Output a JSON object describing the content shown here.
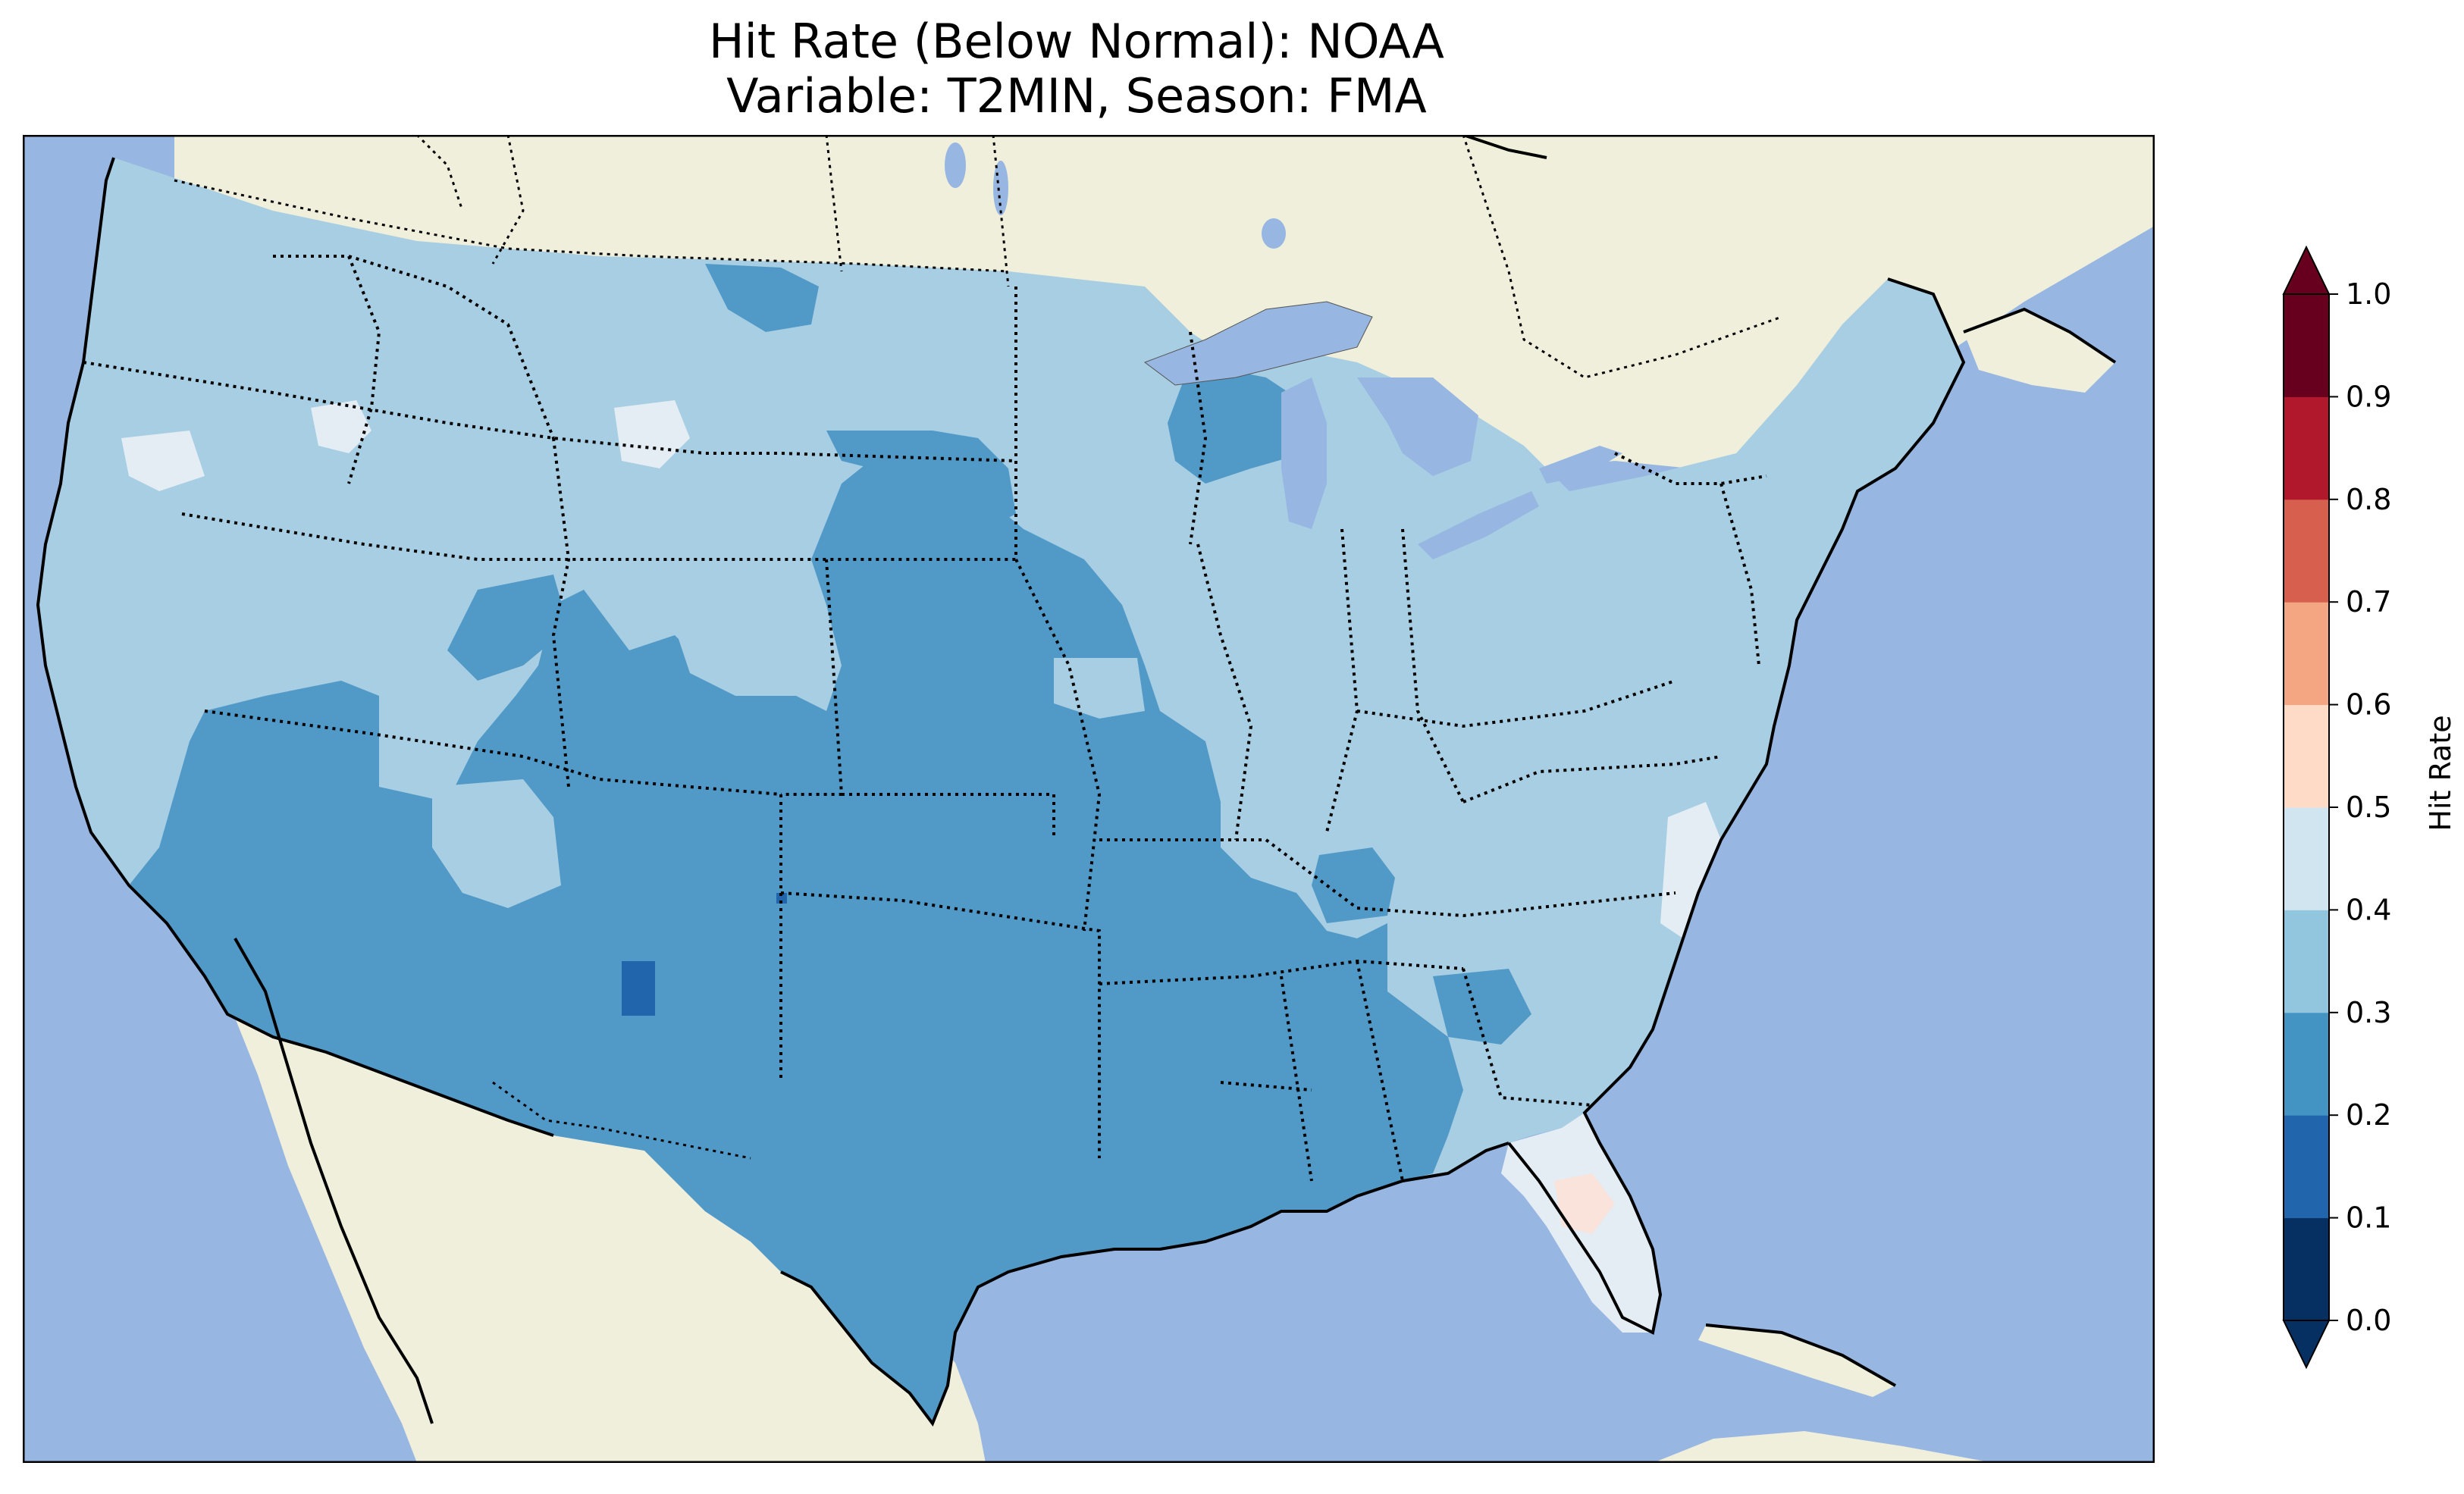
{
  "title": {
    "line1": "Hit Rate (Below Normal): NOAA",
    "line2": "Variable: T2MIN, Season: FMA"
  },
  "colors": {
    "ocean": "#97b6e1",
    "land": "#efefdb",
    "lake": "#97b6e1",
    "cell_0_1": "#053061",
    "cell_1_2": "#2166ac",
    "cell_2_3": "#4393c3",
    "cell_3_4": "#92c5de",
    "cell_4_5": "#d1e5f0",
    "cell_5_6": "#fddbc7",
    "cell_6_7": "#f4a582",
    "cell_7_8": "#d6604d",
    "cell_8_9": "#b2182b",
    "cell_9_10": "#67001f"
  },
  "colorbar": {
    "label": "Hit Rate",
    "ticks": [
      "0.0",
      "0.1",
      "0.2",
      "0.3",
      "0.4",
      "0.5",
      "0.6",
      "0.7",
      "0.8",
      "0.9",
      "1.0"
    ],
    "bins": [
      {
        "range": [
          0.0,
          0.1
        ],
        "color": "#053061"
      },
      {
        "range": [
          0.1,
          0.2
        ],
        "color": "#2166ac"
      },
      {
        "range": [
          0.2,
          0.3
        ],
        "color": "#4393c3"
      },
      {
        "range": [
          0.3,
          0.4
        ],
        "color": "#92c5de"
      },
      {
        "range": [
          0.4,
          0.5
        ],
        "color": "#d1e5f0"
      },
      {
        "range": [
          0.5,
          0.6
        ],
        "color": "#fddbc7"
      },
      {
        "range": [
          0.6,
          0.7
        ],
        "color": "#f4a582"
      },
      {
        "range": [
          0.7,
          0.8
        ],
        "color": "#d6604d"
      },
      {
        "range": [
          0.8,
          0.9
        ],
        "color": "#b2182b"
      },
      {
        "range": [
          0.9,
          1.0
        ],
        "color": "#67001f"
      }
    ],
    "extend": "both"
  },
  "map": {
    "region": "Contiguous United States",
    "features": [
      "coastline",
      "state-borders",
      "lakes",
      "land",
      "ocean"
    ],
    "dominant_hit_rate_bins": {
      "west_and_north": "0.3-0.4",
      "southwest_plains_texas": "0.2-0.3",
      "florida": "0.4-0.5",
      "central_florida_patch": "0.5-0.6",
      "new_mexico_patch": "0.1-0.2"
    }
  }
}
